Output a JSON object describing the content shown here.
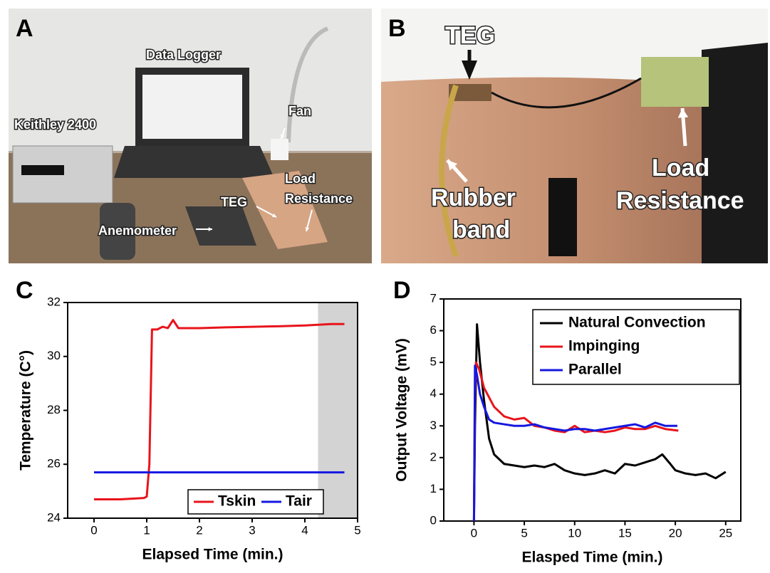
{
  "photos": [
    {
      "label": "A",
      "annotations": [
        [
          "Data Logger"
        ],
        [
          "Keithley 2400"
        ],
        [
          "Fan"
        ],
        [
          "TEG"
        ],
        [
          "Load",
          "Resistance"
        ],
        [
          "Anemometer"
        ]
      ]
    },
    {
      "label": "B",
      "annotations": [
        [
          "TEG"
        ],
        [
          "Rubber",
          "band"
        ],
        [
          "Load",
          "Resistance"
        ]
      ]
    }
  ],
  "chart_data": [
    {
      "type": "line",
      "panel_label": "C",
      "x_label": "Elapsed Time (min.)",
      "y_label": "Temperature (C°)",
      "xlim": [
        -0.5,
        5
      ],
      "xticks": [
        0,
        1,
        2,
        3,
        4,
        5
      ],
      "ylim": [
        24,
        32
      ],
      "yticks": [
        24,
        26,
        28,
        30,
        32
      ],
      "shaded_region": [
        4.25,
        5
      ],
      "legend": "lower right",
      "series": [
        {
          "name": "Tskin",
          "color": "#e8141b",
          "x": [
            0,
            0.5,
            0.95,
            1.0,
            1.05,
            1.1,
            1.2,
            1.3,
            1.4,
            1.5,
            1.6,
            2,
            2.5,
            3,
            3.5,
            4,
            4.5,
            4.75
          ],
          "values": [
            24.7,
            24.7,
            24.75,
            24.8,
            26,
            31.0,
            31.0,
            31.1,
            31.05,
            31.35,
            31.05,
            31.05,
            31.08,
            31.1,
            31.12,
            31.15,
            31.2,
            31.2
          ]
        },
        {
          "name": "Tair",
          "color": "#1518e0",
          "x": [
            0,
            4.75
          ],
          "values": [
            25.7,
            25.7
          ]
        }
      ]
    },
    {
      "type": "line",
      "panel_label": "D",
      "x_label": "Elasped Time (min.)",
      "y_label": "Output Voltage (mV)",
      "xlim": [
        -3,
        26.5
      ],
      "xticks": [
        0,
        5,
        10,
        15,
        20,
        25
      ],
      "ylim": [
        0,
        7
      ],
      "yticks": [
        0,
        1,
        2,
        3,
        4,
        5,
        6,
        7
      ],
      "legend": "upper right",
      "series": [
        {
          "name": "Natural Convection",
          "color": "#000000",
          "x": [
            0,
            0.1,
            0.3,
            0.6,
            1,
            1.5,
            2,
            3,
            4,
            5,
            6,
            7,
            8,
            9,
            10,
            11,
            12,
            13,
            14,
            15,
            16,
            17,
            18,
            18.7,
            19.5,
            20,
            21,
            22,
            23,
            24,
            25
          ],
          "values": [
            0,
            3,
            6.2,
            5,
            3.8,
            2.6,
            2.1,
            1.8,
            1.75,
            1.7,
            1.75,
            1.7,
            1.8,
            1.6,
            1.5,
            1.45,
            1.5,
            1.6,
            1.5,
            1.8,
            1.75,
            1.85,
            1.95,
            2.1,
            1.8,
            1.6,
            1.5,
            1.45,
            1.5,
            1.35,
            1.55
          ]
        },
        {
          "name": "Impinging",
          "color": "#e8141b",
          "x": [
            0,
            0.1,
            0.2,
            0.5,
            1,
            2,
            3,
            4,
            5,
            6,
            7,
            8,
            9,
            10,
            11,
            12,
            13,
            14,
            15,
            16,
            17,
            18,
            19,
            20.3
          ],
          "values": [
            0,
            4,
            5.0,
            4.8,
            4.2,
            3.6,
            3.3,
            3.2,
            3.25,
            3.0,
            2.95,
            2.85,
            2.8,
            3.0,
            2.8,
            2.85,
            2.8,
            2.85,
            2.95,
            2.9,
            2.9,
            3.0,
            2.9,
            2.85
          ]
        },
        {
          "name": "Parallel",
          "color": "#1518e0",
          "x": [
            0,
            0.1,
            0.3,
            0.6,
            1,
            1.5,
            2,
            3,
            4,
            5,
            6,
            7,
            8,
            9,
            10,
            11,
            12,
            13,
            14,
            15,
            16,
            17,
            18,
            19,
            20.2
          ],
          "values": [
            0,
            4.9,
            4.6,
            4.0,
            3.6,
            3.2,
            3.1,
            3.05,
            3.0,
            3.0,
            3.05,
            2.95,
            2.9,
            2.85,
            2.9,
            2.9,
            2.85,
            2.9,
            2.95,
            3.0,
            3.05,
            2.95,
            3.1,
            3.0,
            3.0
          ]
        }
      ]
    }
  ]
}
